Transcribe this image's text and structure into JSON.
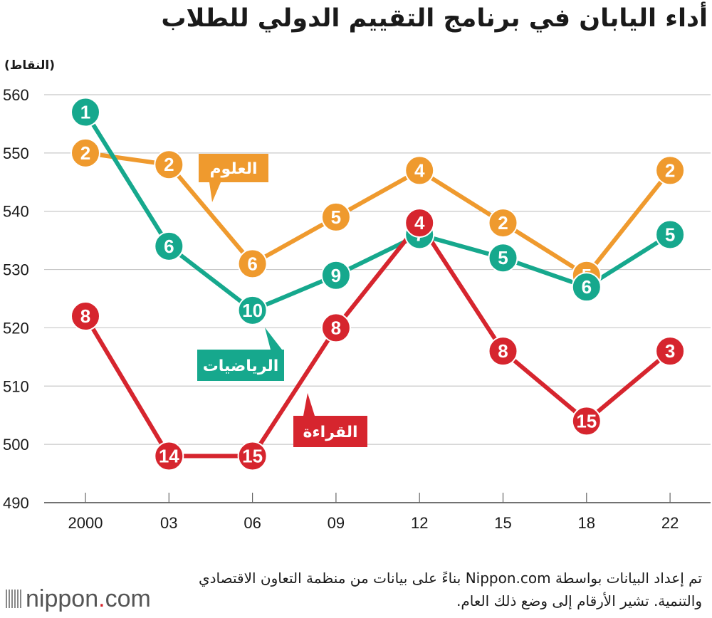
{
  "title": "أداء اليابان في برنامج التقييم الدولي للطلاب",
  "unit_label": "(النقاط)",
  "source_note": "تم إعداد البيانات بواسطة Nippon.com بناءً على بيانات من منظمة التعاون الاقتصادي والتنمية. تشير الأرقام إلى وضع ذلك العام.",
  "logo": {
    "text": "nippon",
    "dot": ".",
    "suffix": "com"
  },
  "chart_data": {
    "type": "line",
    "x": [
      "2000",
      "03",
      "06",
      "09",
      "12",
      "15",
      "18",
      "22"
    ],
    "ylim": [
      490,
      560
    ],
    "yticks": [
      490,
      500,
      510,
      520,
      530,
      540,
      550,
      560
    ],
    "grid": true,
    "series": [
      {
        "name": "العلوم",
        "color": "#ef9a2e",
        "values": [
          550,
          548,
          531,
          539,
          547,
          538,
          529,
          547
        ],
        "ranks": [
          2,
          2,
          6,
          5,
          4,
          2,
          5,
          2
        ]
      },
      {
        "name": "الرياضيات",
        "color": "#16a88d",
        "values": [
          557,
          534,
          523,
          529,
          536,
          532,
          527,
          536
        ],
        "ranks": [
          1,
          6,
          10,
          9,
          7,
          5,
          6,
          5
        ]
      },
      {
        "name": "القراءة",
        "color": "#d6252e",
        "values": [
          522,
          498,
          498,
          520,
          538,
          516,
          504,
          516
        ],
        "ranks": [
          8,
          14,
          15,
          8,
          4,
          8,
          15,
          3
        ]
      }
    ]
  }
}
